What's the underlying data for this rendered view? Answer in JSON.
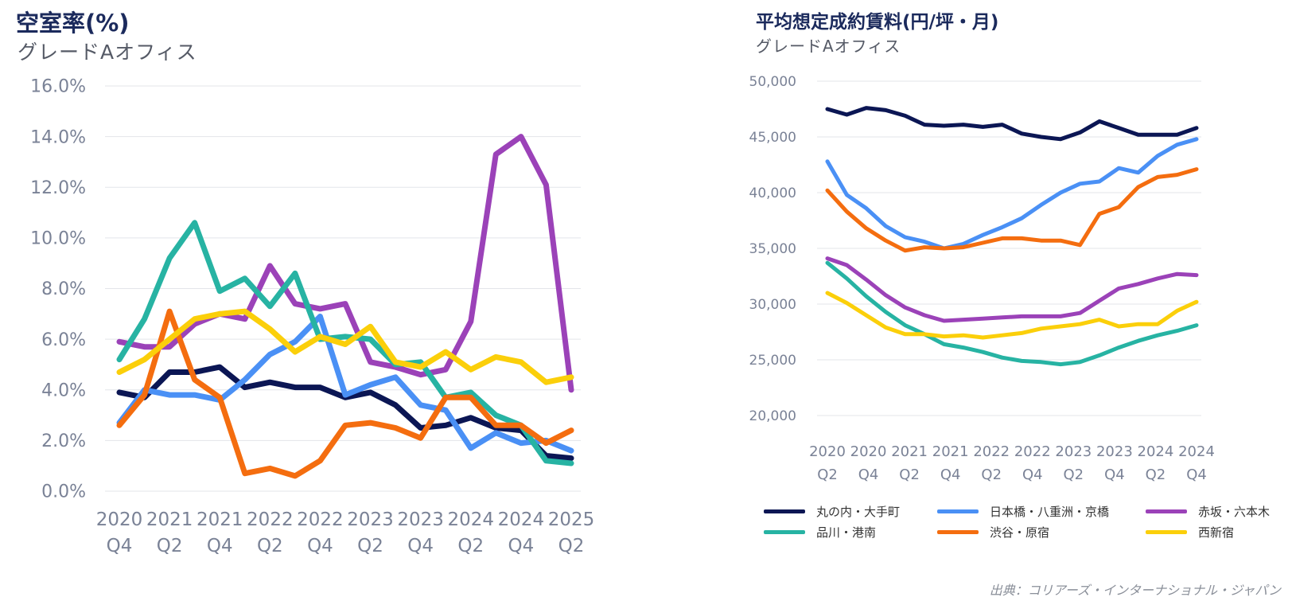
{
  "source": "出典：コリアーズ・インターナショナル・ジャパン",
  "chart_data": [
    {
      "type": "line",
      "title": "空室率(%)",
      "subtitle": "グレードAオフィス",
      "ylim": [
        0,
        16
      ],
      "yticks": [
        "16.0%",
        "14.0%",
        "12.0%",
        "10.0%",
        "8.0%",
        "6.0%",
        "4.0%",
        "2.0%",
        "0.0%"
      ],
      "ytick_values": [
        16,
        14,
        12,
        10,
        8,
        6,
        4,
        2,
        0
      ],
      "x_label_top": [
        "2020",
        "2021",
        "2021",
        "2022",
        "2022",
        "2023",
        "2023",
        "2024",
        "2024",
        "2025"
      ],
      "x_label_bottom": [
        "Q4",
        "Q2",
        "Q4",
        "Q2",
        "Q4",
        "Q2",
        "Q4",
        "Q2",
        "Q4",
        "Q2"
      ],
      "grid": true,
      "series": [
        {
          "name": "丸の内・大手町",
          "color": "#0b1654",
          "values": [
            3.9,
            3.7,
            4.7,
            4.7,
            4.9,
            4.1,
            4.3,
            4.1,
            4.1,
            3.7,
            3.9,
            3.4,
            2.5,
            2.6,
            2.9,
            2.5,
            2.4,
            1.4,
            1.3
          ]
        },
        {
          "name": "日本橋・八重洲・京橋",
          "color": "#4a90f5",
          "values": [
            2.7,
            4.0,
            3.8,
            3.8,
            3.6,
            4.4,
            5.4,
            5.9,
            6.9,
            3.8,
            4.2,
            4.5,
            3.4,
            3.2,
            1.7,
            2.3,
            1.9,
            2.0,
            1.6
          ]
        },
        {
          "name": "赤坂・六本木",
          "color": "#9b42b8",
          "values": [
            5.9,
            5.7,
            5.7,
            6.6,
            7.0,
            6.8,
            8.9,
            7.4,
            7.2,
            7.4,
            5.1,
            4.9,
            4.6,
            4.8,
            6.7,
            13.3,
            14.0,
            12.1,
            4.0
          ]
        },
        {
          "name": "品川・港南",
          "color": "#27b3a3",
          "values": [
            5.2,
            6.8,
            9.2,
            10.6,
            7.9,
            8.4,
            7.3,
            8.6,
            6.0,
            6.1,
            6.0,
            5.0,
            5.1,
            3.7,
            3.9,
            3.0,
            2.6,
            1.2,
            1.1
          ]
        },
        {
          "name": "渋谷・原宿",
          "color": "#f46d0f",
          "values": [
            2.6,
            3.8,
            7.1,
            4.4,
            3.7,
            0.7,
            0.9,
            0.6,
            1.2,
            2.6,
            2.7,
            2.5,
            2.1,
            3.7,
            3.7,
            2.6,
            2.6,
            1.9,
            2.4
          ]
        },
        {
          "name": "西新宿",
          "color": "#fbcf0a",
          "values": [
            4.7,
            5.2,
            6.0,
            6.8,
            7.0,
            7.1,
            6.4,
            5.5,
            6.1,
            5.8,
            6.5,
            5.1,
            4.9,
            5.5,
            4.8,
            5.3,
            5.1,
            4.3,
            4.5
          ]
        }
      ]
    },
    {
      "type": "line",
      "title": "平均想定成約賃料(円/坪・月)",
      "subtitle": "グレードAオフィス",
      "ylim": [
        20000,
        50000
      ],
      "yticks": [
        "50,000",
        "45,000",
        "40,000",
        "35,000",
        "30,000",
        "25,000",
        "20,000"
      ],
      "ytick_values": [
        50000,
        45000,
        40000,
        35000,
        30000,
        25000,
        20000
      ],
      "x_label_top": [
        "2020",
        "2020",
        "2021",
        "2021",
        "2022",
        "2022",
        "2023",
        "2023",
        "2024",
        "2024"
      ],
      "x_label_bottom": [
        "Q2",
        "Q4",
        "Q2",
        "Q4",
        "Q2",
        "Q4",
        "Q2",
        "Q4",
        "Q2",
        "Q4"
      ],
      "grid": true,
      "legend_position": "bottom",
      "series": [
        {
          "name": "丸の内・大手町",
          "color": "#0b1654",
          "values": [
            47500,
            47000,
            47600,
            47400,
            46900,
            46100,
            46000,
            46100,
            45900,
            46100,
            45300,
            45000,
            44800,
            45400,
            46400,
            45800,
            45200,
            45200,
            45200,
            45800
          ]
        },
        {
          "name": "日本橋・八重洲・京橋",
          "color": "#4a90f5",
          "values": [
            42800,
            39800,
            38600,
            37000,
            36000,
            35600,
            35000,
            35400,
            36200,
            36900,
            37700,
            38900,
            40000,
            40800,
            41000,
            42200,
            41800,
            43300,
            44300,
            44800
          ]
        },
        {
          "name": "赤坂・六本木",
          "color": "#9b42b8",
          "values": [
            34100,
            33500,
            32200,
            30800,
            29700,
            29000,
            28500,
            28600,
            28700,
            28800,
            28900,
            28900,
            28900,
            29200,
            30300,
            31400,
            31800,
            32300,
            32700,
            32600
          ]
        },
        {
          "name": "品川・港南",
          "color": "#27b3a3",
          "values": [
            33700,
            32300,
            30700,
            29300,
            28100,
            27300,
            26400,
            26100,
            25700,
            25200,
            24900,
            24800,
            24600,
            24800,
            25400,
            26100,
            26700,
            27200,
            27600,
            28100
          ]
        },
        {
          "name": "渋谷・原宿",
          "color": "#f46d0f",
          "values": [
            40200,
            38300,
            36800,
            35700,
            34800,
            35100,
            35000,
            35100,
            35500,
            35900,
            35900,
            35700,
            35700,
            35300,
            38100,
            38700,
            40500,
            41400,
            41600,
            42100
          ]
        },
        {
          "name": "西新宿",
          "color": "#fbcf0a",
          "values": [
            31000,
            30100,
            29000,
            27900,
            27300,
            27300,
            27100,
            27200,
            27000,
            27200,
            27400,
            27800,
            28000,
            28200,
            28600,
            28000,
            28200,
            28200,
            29400,
            30200
          ]
        }
      ]
    }
  ]
}
